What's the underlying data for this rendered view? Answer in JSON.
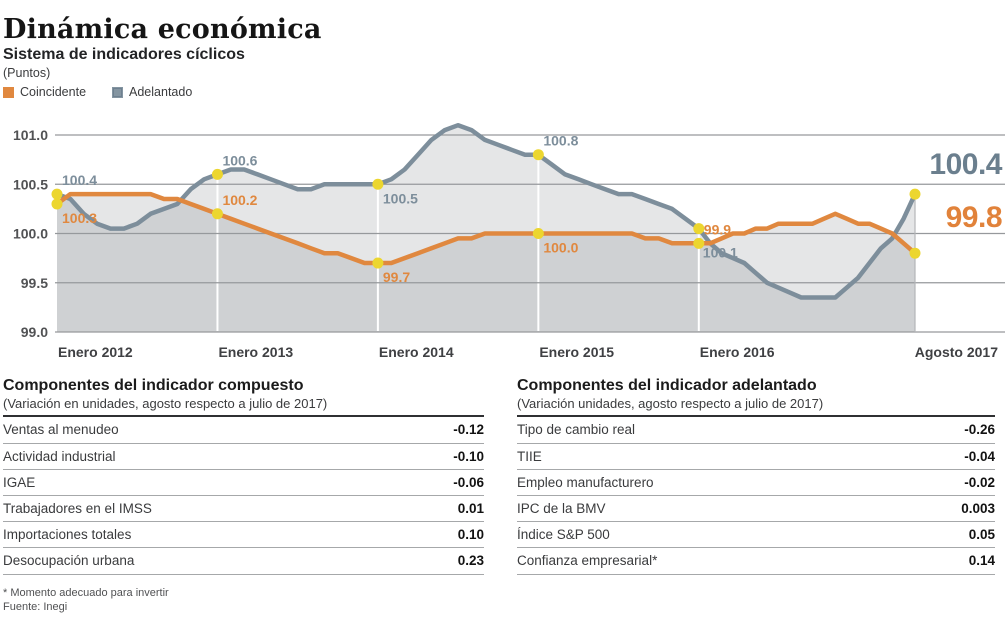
{
  "header": {
    "title": "Dinámica económica",
    "subtitle": "Sistema de indicadores cíclicos",
    "units": "(Puntos)"
  },
  "legend": [
    {
      "label": "Coincidente",
      "color": "#e0883f"
    },
    {
      "label": "Adelantado",
      "color": "#8495a1"
    }
  ],
  "chart_data": {
    "type": "line",
    "title": "Sistema de indicadores cíclicos",
    "ylabel": "Puntos",
    "ylim": [
      99.0,
      101.0
    ],
    "yticks": [
      101.0,
      100.5,
      100.0,
      99.5,
      99.0
    ],
    "grid": "horizontal",
    "x_unit": "monthly, Enero 2012 - Agosto 2017",
    "xticks": [
      "Enero 2012",
      "Enero 2013",
      "Enero 2014",
      "Enero 2015",
      "Enero 2016",
      "Agosto 2017"
    ],
    "xtick_month_index": [
      0,
      12,
      24,
      36,
      48,
      67
    ],
    "area_fill": "rgba(100,105,110,0.17)",
    "marker_color": "#ecd62f",
    "series": [
      {
        "name": "Coincidente",
        "color": "#e0883f",
        "values": [
          100.3,
          100.4,
          100.4,
          100.4,
          100.4,
          100.4,
          100.4,
          100.4,
          100.35,
          100.35,
          100.3,
          100.25,
          100.2,
          100.15,
          100.1,
          100.05,
          100.0,
          99.95,
          99.9,
          99.85,
          99.8,
          99.8,
          99.75,
          99.7,
          99.7,
          99.7,
          99.75,
          99.8,
          99.85,
          99.9,
          99.95,
          99.95,
          100.0,
          100.0,
          100.0,
          100.0,
          100.0,
          100.0,
          100.0,
          100.0,
          100.0,
          100.0,
          100.0,
          100.0,
          99.95,
          99.95,
          99.9,
          99.9,
          99.9,
          99.9,
          99.95,
          100.0,
          100.0,
          100.05,
          100.05,
          100.1,
          100.1,
          100.1,
          100.1,
          100.15,
          100.2,
          100.15,
          100.1,
          100.1,
          100.05,
          100.0,
          99.9,
          99.8
        ]
      },
      {
        "name": "Adelantado",
        "color": "#7d8e9b",
        "values": [
          100.4,
          100.35,
          100.2,
          100.1,
          100.05,
          100.05,
          100.1,
          100.2,
          100.25,
          100.3,
          100.45,
          100.55,
          100.6,
          100.65,
          100.65,
          100.6,
          100.55,
          100.5,
          100.45,
          100.45,
          100.5,
          100.5,
          100.5,
          100.5,
          100.5,
          100.55,
          100.65,
          100.8,
          100.95,
          101.05,
          101.1,
          101.05,
          100.95,
          100.9,
          100.85,
          100.8,
          100.8,
          100.7,
          100.6,
          100.55,
          100.5,
          100.45,
          100.4,
          100.4,
          100.35,
          100.3,
          100.25,
          100.15,
          100.05,
          99.9,
          99.8,
          99.75,
          99.7,
          99.6,
          99.5,
          99.45,
          99.4,
          99.35,
          99.35,
          99.35,
          99.35,
          99.45,
          99.55,
          99.7,
          99.85,
          99.95,
          100.15,
          100.4
        ]
      }
    ],
    "annotations": [
      {
        "series": "Adelantado",
        "x": "Enero 2012",
        "month_index": 0,
        "value": 100.4,
        "label": "100.4",
        "placement": "above"
      },
      {
        "series": "Coincidente",
        "x": "Enero 2012",
        "month_index": 0,
        "value": 100.3,
        "label": "100.3",
        "placement": "below"
      },
      {
        "series": "Adelantado",
        "x": "Enero 2013",
        "month_index": 12,
        "value": 100.6,
        "label": "100.6",
        "placement": "above"
      },
      {
        "series": "Coincidente",
        "x": "Enero 2013",
        "month_index": 12,
        "value": 100.2,
        "label": "100.2",
        "placement": "above"
      },
      {
        "series": "Adelantado",
        "x": "Enero 2014",
        "month_index": 24,
        "value": 100.5,
        "label": "100.5",
        "placement": "below"
      },
      {
        "series": "Coincidente",
        "x": "Enero 2014",
        "month_index": 24,
        "value": 99.7,
        "label": "99.7",
        "placement": "below"
      },
      {
        "series": "Adelantado",
        "x": "Enero 2015",
        "month_index": 36,
        "value": 100.8,
        "label": "100.8",
        "placement": "above"
      },
      {
        "series": "Coincidente",
        "x": "Enero 2015",
        "month_index": 36,
        "value": 100.0,
        "label": "100.0",
        "placement": "below"
      },
      {
        "series": "Coincidente",
        "x": "Enero 2016",
        "month_index": 48,
        "value": 99.9,
        "label": "99.9",
        "placement": "above"
      },
      {
        "series": "Adelantado",
        "x": "Enero 2016",
        "month_index": 48,
        "value": 100.1,
        "label": "100.1",
        "placement": "below-far"
      },
      {
        "series": "Adelantado",
        "x": "Agosto 2017",
        "month_index": 67,
        "value": 100.4,
        "label": "100.4",
        "placement": "end-big"
      },
      {
        "series": "Coincidente",
        "x": "Agosto 2017",
        "month_index": 67,
        "value": 99.8,
        "label": "99.8",
        "placement": "end-big"
      }
    ]
  },
  "tables": [
    {
      "title": "Componentes del indicador compuesto",
      "subtitle": "(Variación en unidades, agosto respecto a julio de 2017)",
      "rows": [
        {
          "label": "Ventas al menudeo",
          "value": "-0.12"
        },
        {
          "label": "Actividad industrial",
          "value": "-0.10"
        },
        {
          "label": "IGAE",
          "value": "-0.06"
        },
        {
          "label": "Trabajadores en el IMSS",
          "value": "0.01"
        },
        {
          "label": "Importaciones totales",
          "value": "0.10"
        },
        {
          "label": "Desocupación urbana",
          "value": "0.23"
        }
      ]
    },
    {
      "title": "Componentes del indicador adelantado",
      "subtitle": "(Variación unidades, agosto respecto a julio de 2017)",
      "rows": [
        {
          "label": "Tipo de cambio real",
          "value": "-0.26"
        },
        {
          "label": "TIIE",
          "value": "-0.04"
        },
        {
          "label": "Empleo manufacturero",
          "value": "-0.02"
        },
        {
          "label": "IPC de la BMV",
          "value": "0.003"
        },
        {
          "label": "Índice S&P 500",
          "value": "0.05"
        },
        {
          "label": "Confianza empresarial*",
          "value": "0.14"
        }
      ]
    }
  ],
  "footnotes": {
    "note": "* Momento adecuado para invertir",
    "source": "Fuente: Inegi"
  }
}
